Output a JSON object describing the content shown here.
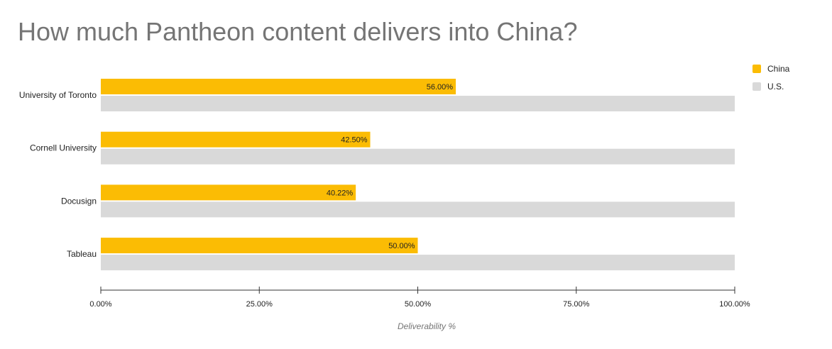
{
  "chart_data": {
    "type": "bar",
    "orientation": "horizontal",
    "title": "How much Pantheon content delivers into China?",
    "xlabel": "Deliverability %",
    "ylabel": "",
    "categories": [
      "University of Toronto",
      "Cornell University",
      "Docusign",
      "Tableau"
    ],
    "series": [
      {
        "name": "China",
        "values": [
          56.0,
          42.5,
          40.22,
          50.0
        ],
        "labels": [
          "56.00%",
          "42.50%",
          "40.22%",
          "50.00%"
        ],
        "color": "#fbbc04"
      },
      {
        "name": "U.S.",
        "values": [
          100,
          100,
          100,
          100
        ],
        "color": "#d9d9d9"
      }
    ],
    "xlim": [
      0,
      100
    ],
    "x_ticks": [
      "0.00%",
      "25.00%",
      "50.00%",
      "75.00%",
      "100.00%"
    ],
    "grid": false,
    "legend_position": "right"
  }
}
